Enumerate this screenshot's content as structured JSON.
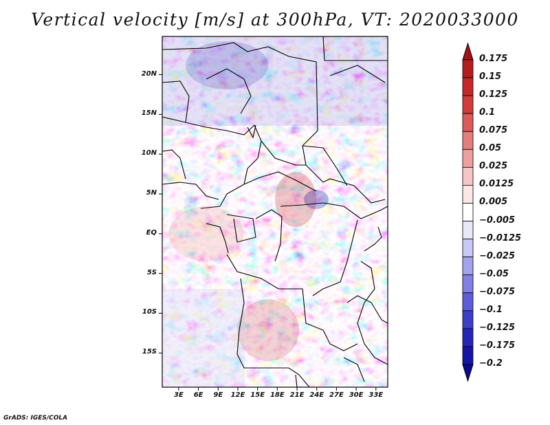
{
  "title": "Vertical velocity [m/s] at 300hPa, VT: 2020033000",
  "credit": "GrADS: IGES/COLA",
  "map": {
    "lat_labels": [
      "20N",
      "15N",
      "10N",
      "5N",
      "EQ",
      "5S",
      "10S",
      "15S"
    ],
    "lat_values": [
      20,
      15,
      10,
      5,
      0,
      -5,
      -10,
      -15
    ],
    "lon_labels": [
      "3E",
      "6E",
      "9E",
      "12E",
      "15E",
      "18E",
      "21E",
      "24E",
      "27E",
      "30E",
      "33E"
    ],
    "lon_values": [
      3,
      6,
      9,
      12,
      15,
      18,
      21,
      24,
      27,
      30,
      33
    ],
    "lon_range": [
      0.5,
      34.8
    ],
    "lat_range": [
      -19.3,
      24.8
    ]
  },
  "colorbar": {
    "labels": [
      "0.175",
      "0.15",
      "0.125",
      "0.1",
      "0.075",
      "0.05",
      "0.025",
      "0.0125",
      "0.005",
      "−0.005",
      "−0.0125",
      "−0.025",
      "−0.05",
      "−0.075",
      "−0.1",
      "−0.125",
      "−0.175",
      "−0.2"
    ],
    "colors": [
      "#a50f15",
      "#b71c1c",
      "#c62828",
      "#d23b3b",
      "#de5a5a",
      "#e57d7d",
      "#ee9f9f",
      "#f6c6c6",
      "#fde6e6",
      "#ffffff",
      "#e8e8fb",
      "#c9c9f5",
      "#a3a3ee",
      "#8080e6",
      "#5d5ddb",
      "#3d3dcc",
      "#2525b8",
      "#1414a6",
      "#0a0a90"
    ]
  }
}
